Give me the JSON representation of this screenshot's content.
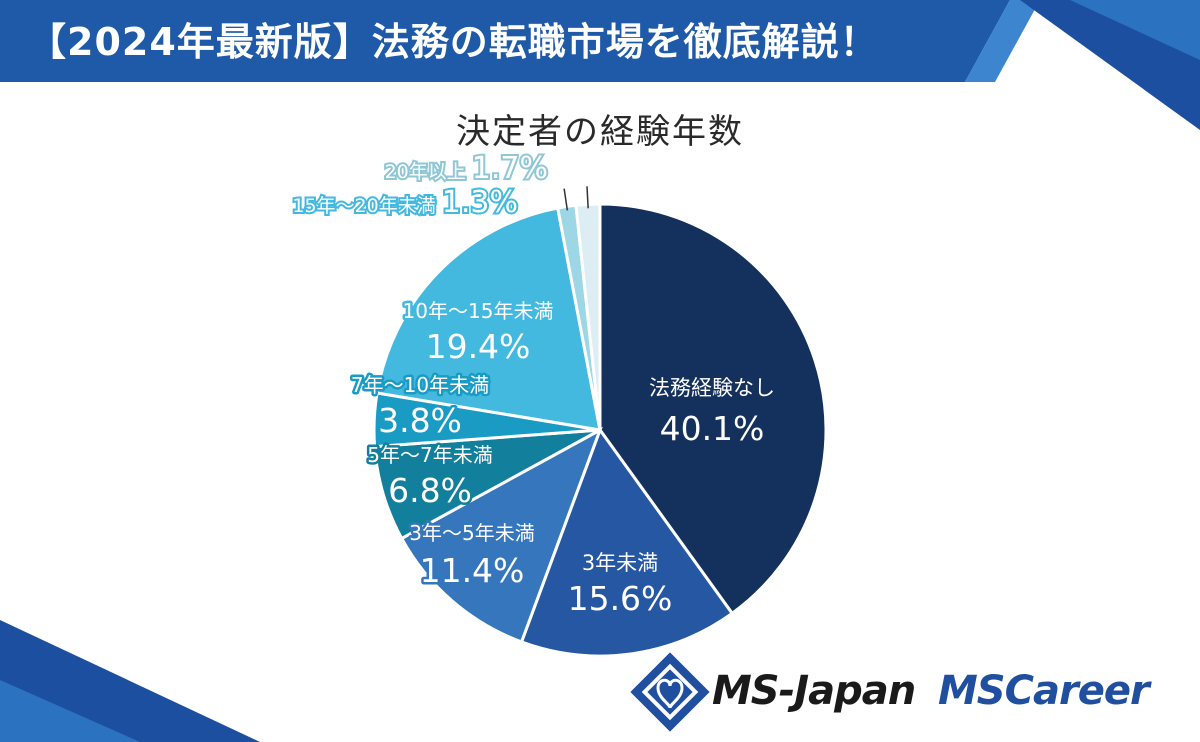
{
  "header": {
    "title": "【2024年最新版】法務の転職市場を徹底解説！"
  },
  "brand": {
    "logo_1": "MS-Japan",
    "logo_2": "MSCareer"
  },
  "colors": {
    "banner": "#1e5aa8",
    "banner_accent": "#3d86cf",
    "slices": [
      "#14305c",
      "#2557a3",
      "#3576bd",
      "#127f9d",
      "#1a9bc4",
      "#44b9e0",
      "#9dd6e5",
      "#dceef4"
    ]
  },
  "chart_data": {
    "type": "pie",
    "title": "決定者の経験年数",
    "slices": [
      {
        "label": "法務経験なし",
        "value": 40.1,
        "value_label": "40.1%"
      },
      {
        "label": "3年未満",
        "value": 15.6,
        "value_label": "15.6%"
      },
      {
        "label": "3年〜5年未満",
        "value": 11.4,
        "value_label": "11.4%"
      },
      {
        "label": "5年〜7年未満",
        "value": 6.8,
        "value_label": "6.8%"
      },
      {
        "label": "7年〜10年未満",
        "value": 3.8,
        "value_label": "3.8%"
      },
      {
        "label": "10年〜15年未満",
        "value": 19.4,
        "value_label": "19.4%"
      },
      {
        "label": "15年〜20年未満",
        "value": 1.3,
        "value_label": "1.3%"
      },
      {
        "label": "20年以上",
        "value": 1.7,
        "value_label": "1.7%"
      }
    ]
  }
}
